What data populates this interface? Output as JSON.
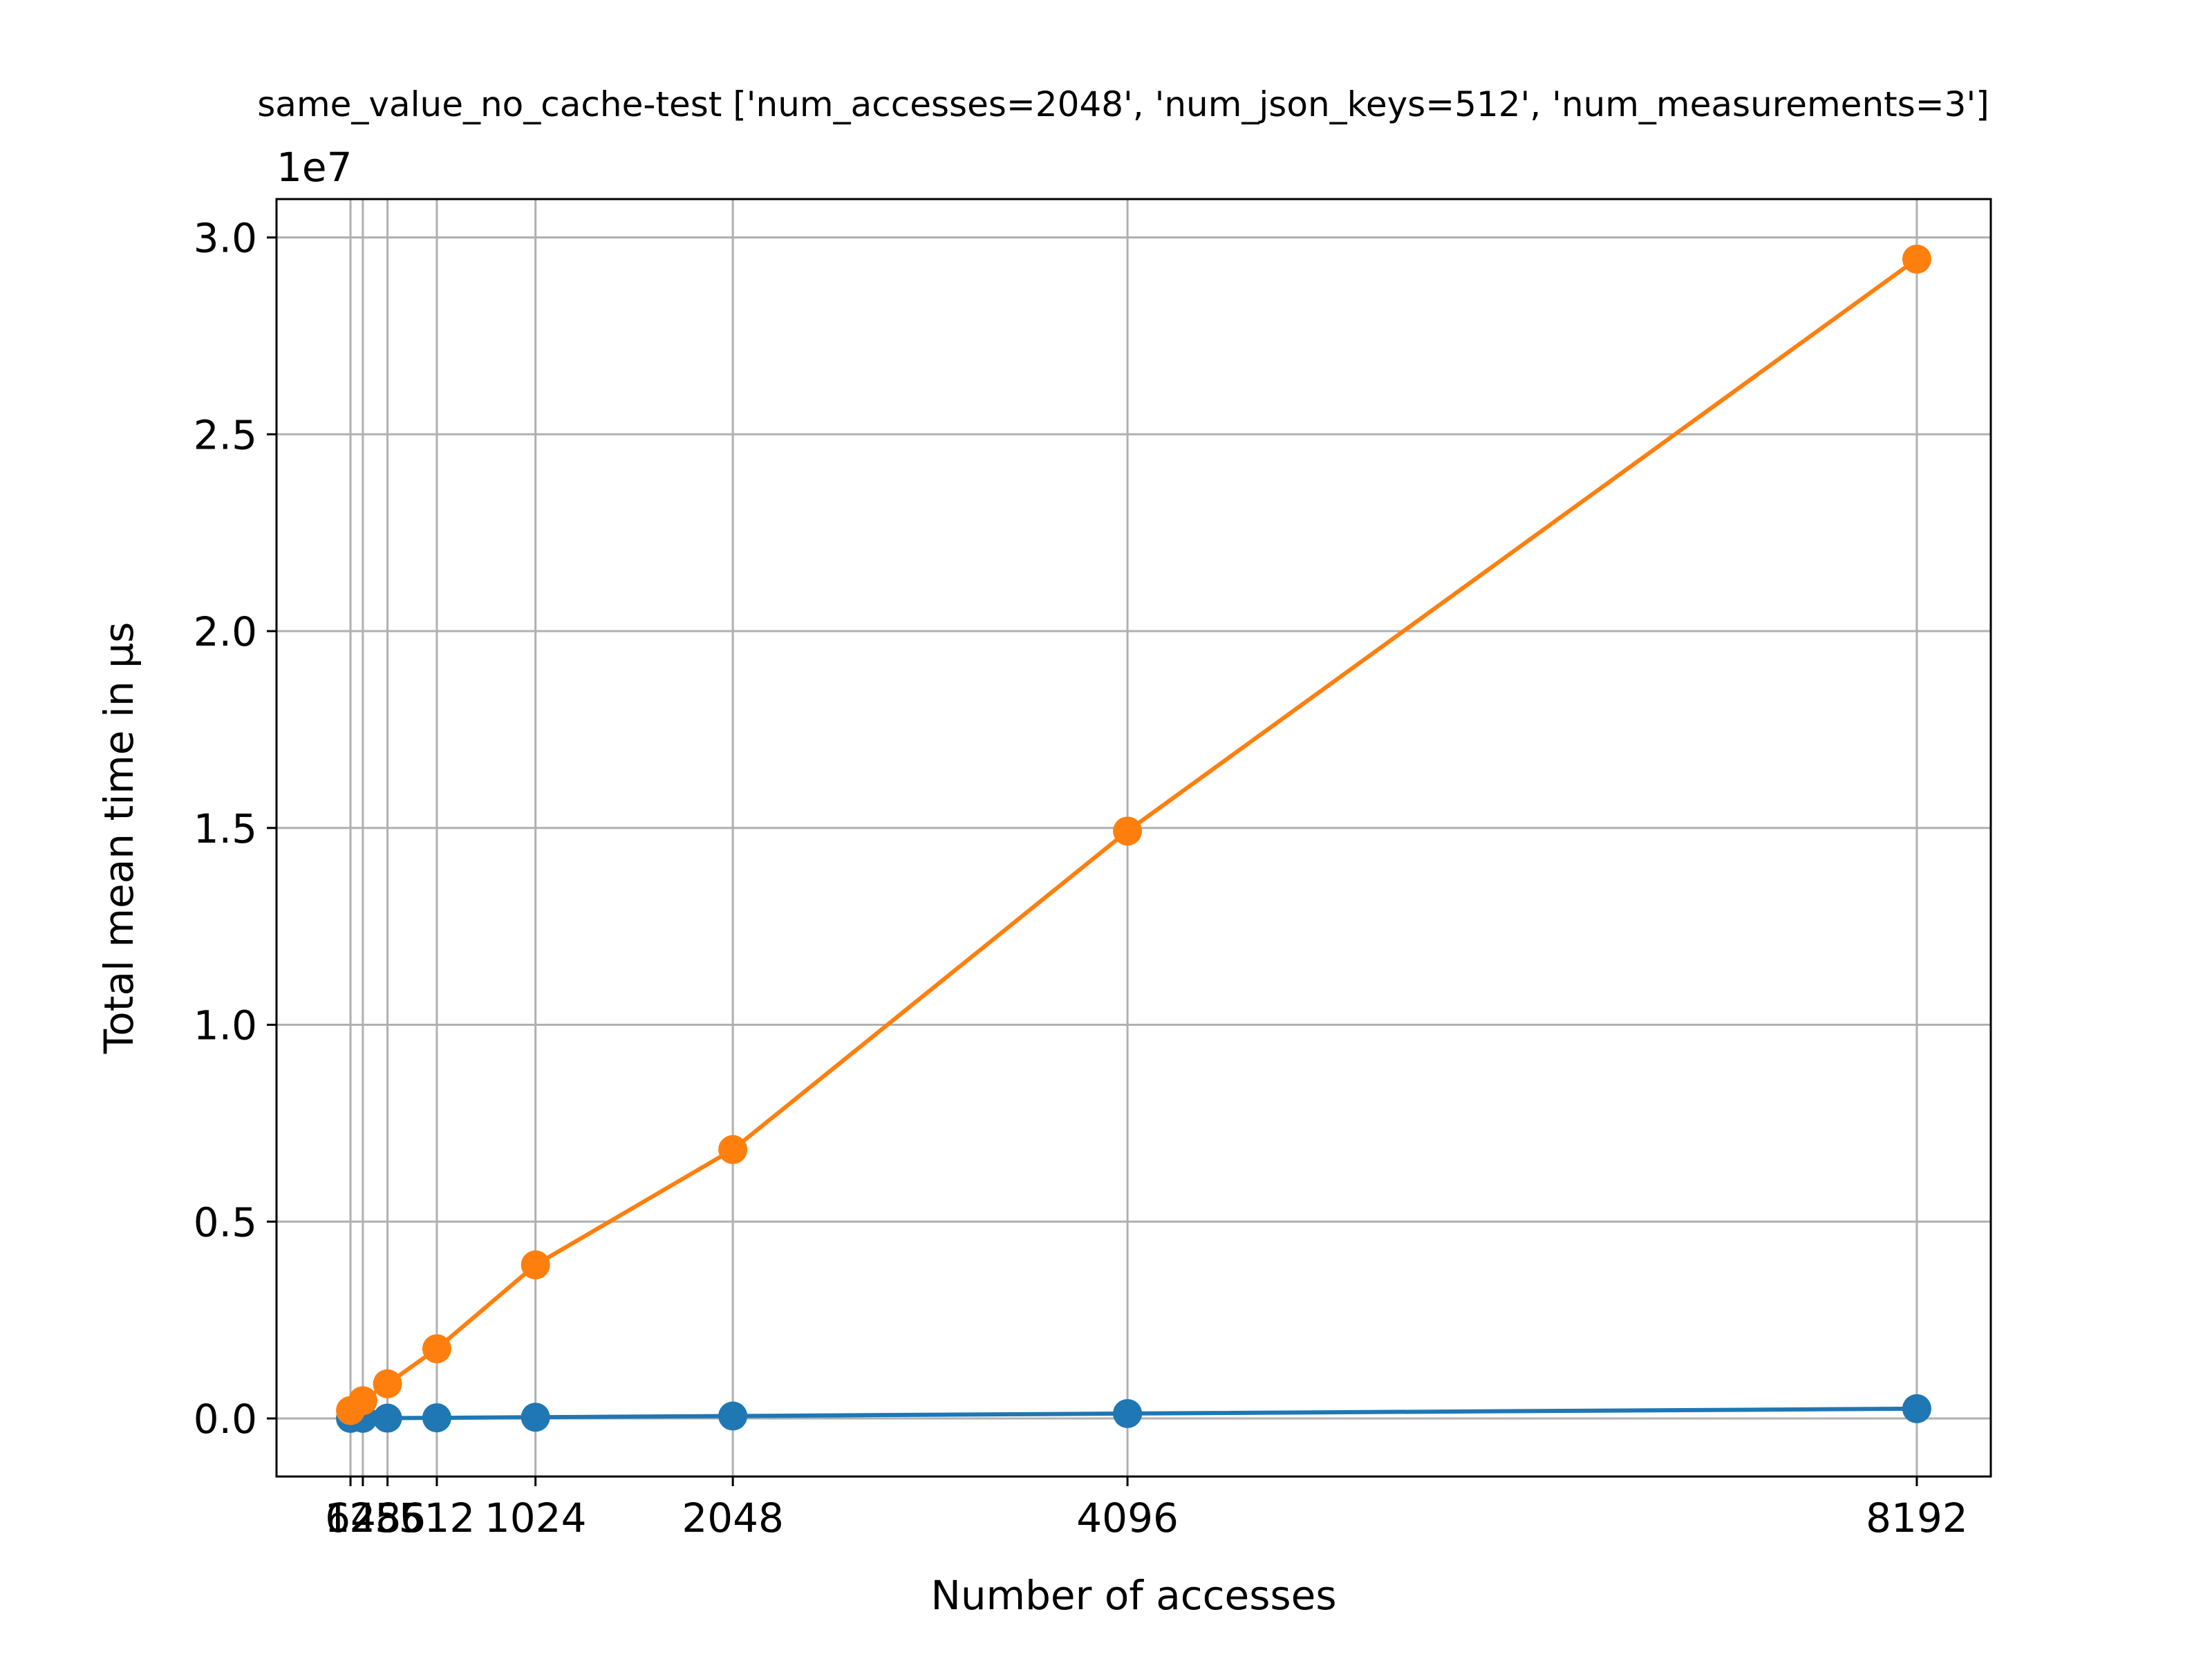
{
  "chart_data": {
    "type": "line",
    "title": "same_value_no_cache-test ['num_accesses=2048', 'num_json_keys=512', 'num_measurements=3']",
    "xlabel": "Number of accesses",
    "ylabel": "Total mean time in µs",
    "y_offset_text": "1e7",
    "x": [
      64,
      128,
      256,
      512,
      1024,
      2048,
      4096,
      8192
    ],
    "xticks": [
      "64",
      "128",
      "256",
      "512",
      "1024",
      "2048",
      "4096",
      "8192"
    ],
    "yticks": [
      "0.0",
      "0.5",
      "1.0",
      "1.5",
      "2.0",
      "2.5",
      "3.0"
    ],
    "ytick_values": [
      0,
      5000000,
      10000000,
      15000000,
      20000000,
      25000000,
      30000000
    ],
    "xlim": [
      -320,
      8576
    ],
    "ylim": [
      -1475000,
      30975000
    ],
    "grid": true,
    "legend": "none",
    "series": [
      {
        "color": "#1f77b4",
        "marker": "circle",
        "values": [
          2000,
          4000,
          8000,
          16000,
          31000,
          62000,
          124000,
          248000
        ]
      },
      {
        "color": "#ff7f0e",
        "marker": "circle",
        "values": [
          200000,
          450000,
          880000,
          1770000,
          3900000,
          6830000,
          14920000,
          29450000
        ]
      }
    ]
  }
}
